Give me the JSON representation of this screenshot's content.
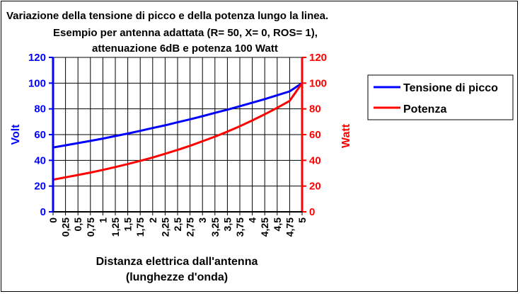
{
  "chart_data": {
    "type": "line",
    "title_lines": [
      "Variazione della tensione di picco e della potenza lungo la linea.",
      "Esempio per antenna adattata (R= 50, X= 0, ROS= 1),",
      "attenuazione 6dB e potenza 100 Watt"
    ],
    "x": [
      0,
      0.25,
      0.5,
      0.75,
      1,
      1.25,
      1.5,
      1.75,
      2,
      2.25,
      2.5,
      2.75,
      3,
      3.25,
      3.5,
      3.75,
      4,
      4.25,
      4.5,
      4.75,
      5
    ],
    "x_tick_labels": [
      "0",
      "0,25",
      "0,5",
      "0,75",
      "1",
      "1,25",
      "1,5",
      "1,75",
      "2",
      "2,25",
      "2,5",
      "2,75",
      "3",
      "3,25",
      "3,5",
      "3,75",
      "4",
      "4,25",
      "4,5",
      "4,75",
      "5"
    ],
    "xlim": [
      0,
      5
    ],
    "xlabel_lines": [
      "Distanza elettrica dall'antenna",
      "(lunghezze d'onda)"
    ],
    "y_left": {
      "label": "Volt",
      "ylim": [
        0,
        120
      ],
      "ticks": [
        "0",
        "20",
        "40",
        "60",
        "80",
        "100",
        "120"
      ],
      "color": "#0000ff"
    },
    "y_right": {
      "label": "Watt",
      "ylim": [
        0,
        120
      ],
      "ticks": [
        "0",
        "20",
        "40",
        "60",
        "80",
        "100",
        "120"
      ],
      "color": "#ff0000"
    },
    "series": [
      {
        "name": "Tensione di picco",
        "axis": "left",
        "color": "#0000ff",
        "values": [
          50.0,
          51.7,
          53.4,
          55.1,
          56.9,
          58.9,
          60.8,
          62.9,
          65.1,
          67.2,
          69.6,
          71.9,
          74.3,
          76.9,
          79.4,
          82.1,
          84.8,
          87.6,
          90.6,
          93.6,
          100.0
        ]
      },
      {
        "name": "Potenza",
        "axis": "right",
        "color": "#ff0000",
        "values": [
          25.0,
          26.8,
          28.6,
          30.5,
          32.6,
          34.8,
          37.1,
          39.6,
          42.2,
          45.1,
          48.1,
          51.3,
          54.8,
          58.4,
          62.3,
          66.5,
          71.0,
          75.8,
          80.8,
          86.2,
          100.0
        ]
      }
    ],
    "grid": true,
    "legend": "right"
  }
}
